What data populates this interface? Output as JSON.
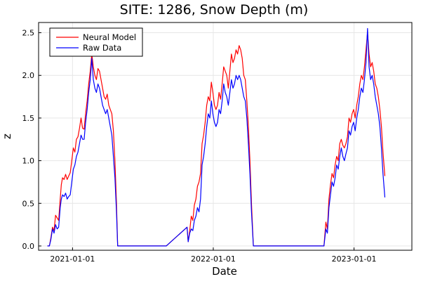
{
  "chart_data": {
    "type": "line",
    "title": "SITE: 1286, Snow Depth (m)",
    "xlabel": "Date",
    "ylabel": "z",
    "x_ticks": [
      "2021-01-01",
      "2022-01-01",
      "2023-01-01"
    ],
    "y_ticks": [
      "0.0",
      "0.5",
      "1.0",
      "1.5",
      "2.0",
      "2.5"
    ],
    "xlim": [
      "2020-10-05",
      "2023-05-31"
    ],
    "ylim": [
      -0.05,
      2.62
    ],
    "grid": true,
    "legend_position": "top-left",
    "series": [
      {
        "name": "Neural Model",
        "color": "#ff0000",
        "points": [
          [
            "2020-10-28",
            0.0
          ],
          [
            "2020-11-02",
            0.0
          ],
          [
            "2020-11-06",
            0.1
          ],
          [
            "2020-11-10",
            0.22
          ],
          [
            "2020-11-14",
            0.18
          ],
          [
            "2020-11-18",
            0.36
          ],
          [
            "2020-11-22",
            0.33
          ],
          [
            "2020-11-26",
            0.3
          ],
          [
            "2020-11-30",
            0.55
          ],
          [
            "2020-12-03",
            0.72
          ],
          [
            "2020-12-06",
            0.8
          ],
          [
            "2020-12-10",
            0.78
          ],
          [
            "2020-12-14",
            0.84
          ],
          [
            "2020-12-18",
            0.78
          ],
          [
            "2020-12-22",
            0.82
          ],
          [
            "2020-12-26",
            0.86
          ],
          [
            "2020-12-30",
            1.0
          ],
          [
            "2021-01-03",
            1.15
          ],
          [
            "2021-01-07",
            1.1
          ],
          [
            "2021-01-11",
            1.25
          ],
          [
            "2021-01-15",
            1.28
          ],
          [
            "2021-01-19",
            1.38
          ],
          [
            "2021-01-23",
            1.5
          ],
          [
            "2021-01-27",
            1.38
          ],
          [
            "2021-01-31",
            1.37
          ],
          [
            "2021-02-04",
            1.55
          ],
          [
            "2021-02-08",
            1.7
          ],
          [
            "2021-02-12",
            1.9
          ],
          [
            "2021-02-16",
            2.05
          ],
          [
            "2021-02-20",
            2.25
          ],
          [
            "2021-02-24",
            2.1
          ],
          [
            "2021-02-28",
            2.0
          ],
          [
            "2021-03-04",
            1.95
          ],
          [
            "2021-03-08",
            2.08
          ],
          [
            "2021-03-12",
            2.05
          ],
          [
            "2021-03-16",
            1.95
          ],
          [
            "2021-03-20",
            1.85
          ],
          [
            "2021-03-24",
            1.75
          ],
          [
            "2021-03-28",
            1.72
          ],
          [
            "2021-04-01",
            1.78
          ],
          [
            "2021-04-05",
            1.65
          ],
          [
            "2021-04-09",
            1.6
          ],
          [
            "2021-04-13",
            1.55
          ],
          [
            "2021-04-17",
            1.35
          ],
          [
            "2021-04-21",
            1.0
          ],
          [
            "2021-04-25",
            0.5
          ],
          [
            "2021-04-28",
            0.0
          ],
          [
            "2021-05-20",
            0.0
          ],
          [
            "2021-06-10",
            0.0
          ],
          [
            "2021-07-01",
            0.0
          ],
          [
            "2021-09-01",
            0.0
          ],
          [
            "2021-10-25",
            0.22
          ],
          [
            "2021-10-28",
            0.05
          ],
          [
            "2021-11-01",
            0.18
          ],
          [
            "2021-11-05",
            0.35
          ],
          [
            "2021-11-09",
            0.3
          ],
          [
            "2021-11-13",
            0.48
          ],
          [
            "2021-11-17",
            0.55
          ],
          [
            "2021-11-21",
            0.7
          ],
          [
            "2021-11-25",
            0.75
          ],
          [
            "2021-11-29",
            0.85
          ],
          [
            "2021-12-03",
            1.2
          ],
          [
            "2021-12-07",
            1.3
          ],
          [
            "2021-12-11",
            1.45
          ],
          [
            "2021-12-15",
            1.65
          ],
          [
            "2021-12-19",
            1.75
          ],
          [
            "2021-12-23",
            1.7
          ],
          [
            "2021-12-27",
            1.92
          ],
          [
            "2021-12-31",
            1.8
          ],
          [
            "2022-01-04",
            1.65
          ],
          [
            "2022-01-08",
            1.6
          ],
          [
            "2022-01-12",
            1.65
          ],
          [
            "2022-01-16",
            1.8
          ],
          [
            "2022-01-20",
            1.72
          ],
          [
            "2022-01-24",
            1.9
          ],
          [
            "2022-01-28",
            2.1
          ],
          [
            "2022-02-01",
            2.05
          ],
          [
            "2022-02-05",
            2.0
          ],
          [
            "2022-02-09",
            1.85
          ],
          [
            "2022-02-13",
            2.05
          ],
          [
            "2022-02-17",
            2.25
          ],
          [
            "2022-02-21",
            2.15
          ],
          [
            "2022-02-25",
            2.2
          ],
          [
            "2022-03-01",
            2.3
          ],
          [
            "2022-03-05",
            2.25
          ],
          [
            "2022-03-09",
            2.35
          ],
          [
            "2022-03-13",
            2.3
          ],
          [
            "2022-03-17",
            2.2
          ],
          [
            "2022-03-21",
            2.0
          ],
          [
            "2022-03-25",
            1.95
          ],
          [
            "2022-03-29",
            1.7
          ],
          [
            "2022-04-02",
            1.4
          ],
          [
            "2022-04-06",
            1.0
          ],
          [
            "2022-04-10",
            0.5
          ],
          [
            "2022-04-15",
            0.0
          ],
          [
            "2022-06-01",
            0.0
          ],
          [
            "2022-08-01",
            0.0
          ],
          [
            "2022-10-15",
            0.0
          ],
          [
            "2022-10-20",
            0.28
          ],
          [
            "2022-10-24",
            0.2
          ],
          [
            "2022-10-28",
            0.55
          ],
          [
            "2022-11-01",
            0.72
          ],
          [
            "2022-11-05",
            0.85
          ],
          [
            "2022-11-09",
            0.8
          ],
          [
            "2022-11-13",
            0.95
          ],
          [
            "2022-11-17",
            1.05
          ],
          [
            "2022-11-21",
            1.0
          ],
          [
            "2022-11-25",
            1.2
          ],
          [
            "2022-11-29",
            1.25
          ],
          [
            "2022-12-03",
            1.18
          ],
          [
            "2022-12-07",
            1.15
          ],
          [
            "2022-12-11",
            1.2
          ],
          [
            "2022-12-15",
            1.28
          ],
          [
            "2022-12-19",
            1.5
          ],
          [
            "2022-12-23",
            1.45
          ],
          [
            "2022-12-27",
            1.55
          ],
          [
            "2022-12-31",
            1.6
          ],
          [
            "2023-01-04",
            1.5
          ],
          [
            "2023-01-08",
            1.65
          ],
          [
            "2023-01-12",
            1.75
          ],
          [
            "2023-01-16",
            1.9
          ],
          [
            "2023-01-20",
            2.0
          ],
          [
            "2023-01-24",
            1.95
          ],
          [
            "2023-01-28",
            2.1
          ],
          [
            "2023-02-01",
            2.3
          ],
          [
            "2023-02-05",
            2.5
          ],
          [
            "2023-02-09",
            2.25
          ],
          [
            "2023-02-13",
            2.1
          ],
          [
            "2023-02-17",
            2.15
          ],
          [
            "2023-02-21",
            2.05
          ],
          [
            "2023-02-25",
            1.9
          ],
          [
            "2023-03-01",
            1.85
          ],
          [
            "2023-03-05",
            1.75
          ],
          [
            "2023-03-09",
            1.6
          ],
          [
            "2023-03-13",
            1.4
          ],
          [
            "2023-03-17",
            1.1
          ],
          [
            "2023-03-22",
            0.82
          ]
        ]
      },
      {
        "name": "Raw Data",
        "color": "#0000ff",
        "points": [
          [
            "2020-10-28",
            0.0
          ],
          [
            "2020-11-02",
            0.0
          ],
          [
            "2020-11-06",
            0.08
          ],
          [
            "2020-11-10",
            0.2
          ],
          [
            "2020-11-14",
            0.15
          ],
          [
            "2020-11-18",
            0.25
          ],
          [
            "2020-11-22",
            0.2
          ],
          [
            "2020-11-26",
            0.22
          ],
          [
            "2020-11-30",
            0.45
          ],
          [
            "2020-12-03",
            0.55
          ],
          [
            "2020-12-06",
            0.6
          ],
          [
            "2020-12-10",
            0.58
          ],
          [
            "2020-12-14",
            0.62
          ],
          [
            "2020-12-18",
            0.55
          ],
          [
            "2020-12-22",
            0.58
          ],
          [
            "2020-12-26",
            0.6
          ],
          [
            "2020-12-30",
            0.75
          ],
          [
            "2021-01-03",
            0.9
          ],
          [
            "2021-01-07",
            0.95
          ],
          [
            "2021-01-11",
            1.05
          ],
          [
            "2021-01-15",
            1.1
          ],
          [
            "2021-01-19",
            1.2
          ],
          [
            "2021-01-23",
            1.3
          ],
          [
            "2021-01-27",
            1.25
          ],
          [
            "2021-01-31",
            1.25
          ],
          [
            "2021-02-04",
            1.45
          ],
          [
            "2021-02-08",
            1.6
          ],
          [
            "2021-02-12",
            1.8
          ],
          [
            "2021-02-16",
            1.95
          ],
          [
            "2021-02-20",
            2.2
          ],
          [
            "2021-02-24",
            1.95
          ],
          [
            "2021-02-28",
            1.85
          ],
          [
            "2021-03-04",
            1.8
          ],
          [
            "2021-03-08",
            1.9
          ],
          [
            "2021-03-12",
            1.85
          ],
          [
            "2021-03-16",
            1.75
          ],
          [
            "2021-03-20",
            1.65
          ],
          [
            "2021-03-24",
            1.6
          ],
          [
            "2021-03-28",
            1.55
          ],
          [
            "2021-04-01",
            1.6
          ],
          [
            "2021-04-05",
            1.5
          ],
          [
            "2021-04-09",
            1.4
          ],
          [
            "2021-04-13",
            1.3
          ],
          [
            "2021-04-17",
            1.05
          ],
          [
            "2021-04-21",
            0.8
          ],
          [
            "2021-04-25",
            0.4
          ],
          [
            "2021-04-28",
            0.0
          ],
          [
            "2021-05-20",
            0.0
          ],
          [
            "2021-06-10",
            0.0
          ],
          [
            "2021-07-01",
            0.0
          ],
          [
            "2021-09-01",
            0.0
          ],
          [
            "2021-10-25",
            0.22
          ],
          [
            "2021-10-28",
            0.05
          ],
          [
            "2021-11-01",
            0.15
          ],
          [
            "2021-11-05",
            0.2
          ],
          [
            "2021-11-09",
            0.18
          ],
          [
            "2021-11-13",
            0.3
          ],
          [
            "2021-11-17",
            0.35
          ],
          [
            "2021-11-21",
            0.45
          ],
          [
            "2021-11-25",
            0.4
          ],
          [
            "2021-11-29",
            0.55
          ],
          [
            "2021-12-03",
            0.95
          ],
          [
            "2021-12-07",
            1.05
          ],
          [
            "2021-12-11",
            1.2
          ],
          [
            "2021-12-15",
            1.4
          ],
          [
            "2021-12-19",
            1.55
          ],
          [
            "2021-12-23",
            1.5
          ],
          [
            "2021-12-27",
            1.7
          ],
          [
            "2021-12-31",
            1.55
          ],
          [
            "2022-01-04",
            1.45
          ],
          [
            "2022-01-08",
            1.4
          ],
          [
            "2022-01-12",
            1.45
          ],
          [
            "2022-01-16",
            1.6
          ],
          [
            "2022-01-20",
            1.55
          ],
          [
            "2022-01-24",
            1.7
          ],
          [
            "2022-01-28",
            1.9
          ],
          [
            "2022-02-01",
            1.8
          ],
          [
            "2022-02-05",
            1.75
          ],
          [
            "2022-02-09",
            1.65
          ],
          [
            "2022-02-13",
            1.8
          ],
          [
            "2022-02-17",
            1.95
          ],
          [
            "2022-02-21",
            1.85
          ],
          [
            "2022-02-25",
            1.9
          ],
          [
            "2022-03-01",
            2.0
          ],
          [
            "2022-03-05",
            1.95
          ],
          [
            "2022-03-09",
            2.0
          ],
          [
            "2022-03-13",
            1.95
          ],
          [
            "2022-03-17",
            1.85
          ],
          [
            "2022-03-21",
            1.75
          ],
          [
            "2022-03-25",
            1.7
          ],
          [
            "2022-03-29",
            1.5
          ],
          [
            "2022-04-02",
            1.2
          ],
          [
            "2022-04-06",
            0.85
          ],
          [
            "2022-04-10",
            0.4
          ],
          [
            "2022-04-15",
            0.0
          ],
          [
            "2022-06-01",
            0.0
          ],
          [
            "2022-08-01",
            0.0
          ],
          [
            "2022-10-15",
            0.0
          ],
          [
            "2022-10-20",
            0.2
          ],
          [
            "2022-10-24",
            0.15
          ],
          [
            "2022-10-28",
            0.45
          ],
          [
            "2022-11-01",
            0.6
          ],
          [
            "2022-11-05",
            0.75
          ],
          [
            "2022-11-09",
            0.7
          ],
          [
            "2022-11-13",
            0.8
          ],
          [
            "2022-11-17",
            0.95
          ],
          [
            "2022-11-21",
            0.9
          ],
          [
            "2022-11-25",
            1.05
          ],
          [
            "2022-11-29",
            1.15
          ],
          [
            "2022-12-03",
            1.05
          ],
          [
            "2022-12-07",
            1.0
          ],
          [
            "2022-12-11",
            1.08
          ],
          [
            "2022-12-15",
            1.15
          ],
          [
            "2022-12-19",
            1.35
          ],
          [
            "2022-12-23",
            1.3
          ],
          [
            "2022-12-27",
            1.4
          ],
          [
            "2022-12-31",
            1.45
          ],
          [
            "2023-01-04",
            1.35
          ],
          [
            "2023-01-08",
            1.5
          ],
          [
            "2023-01-12",
            1.6
          ],
          [
            "2023-01-16",
            1.75
          ],
          [
            "2023-01-20",
            1.85
          ],
          [
            "2023-01-24",
            1.8
          ],
          [
            "2023-01-28",
            1.95
          ],
          [
            "2023-02-01",
            2.15
          ],
          [
            "2023-02-05",
            2.55
          ],
          [
            "2023-02-09",
            2.1
          ],
          [
            "2023-02-13",
            1.95
          ],
          [
            "2023-02-17",
            2.0
          ],
          [
            "2023-02-21",
            1.9
          ],
          [
            "2023-02-25",
            1.75
          ],
          [
            "2023-03-01",
            1.65
          ],
          [
            "2023-03-05",
            1.55
          ],
          [
            "2023-03-09",
            1.4
          ],
          [
            "2023-03-13",
            1.15
          ],
          [
            "2023-03-17",
            0.85
          ],
          [
            "2023-03-22",
            0.57
          ]
        ]
      }
    ]
  }
}
